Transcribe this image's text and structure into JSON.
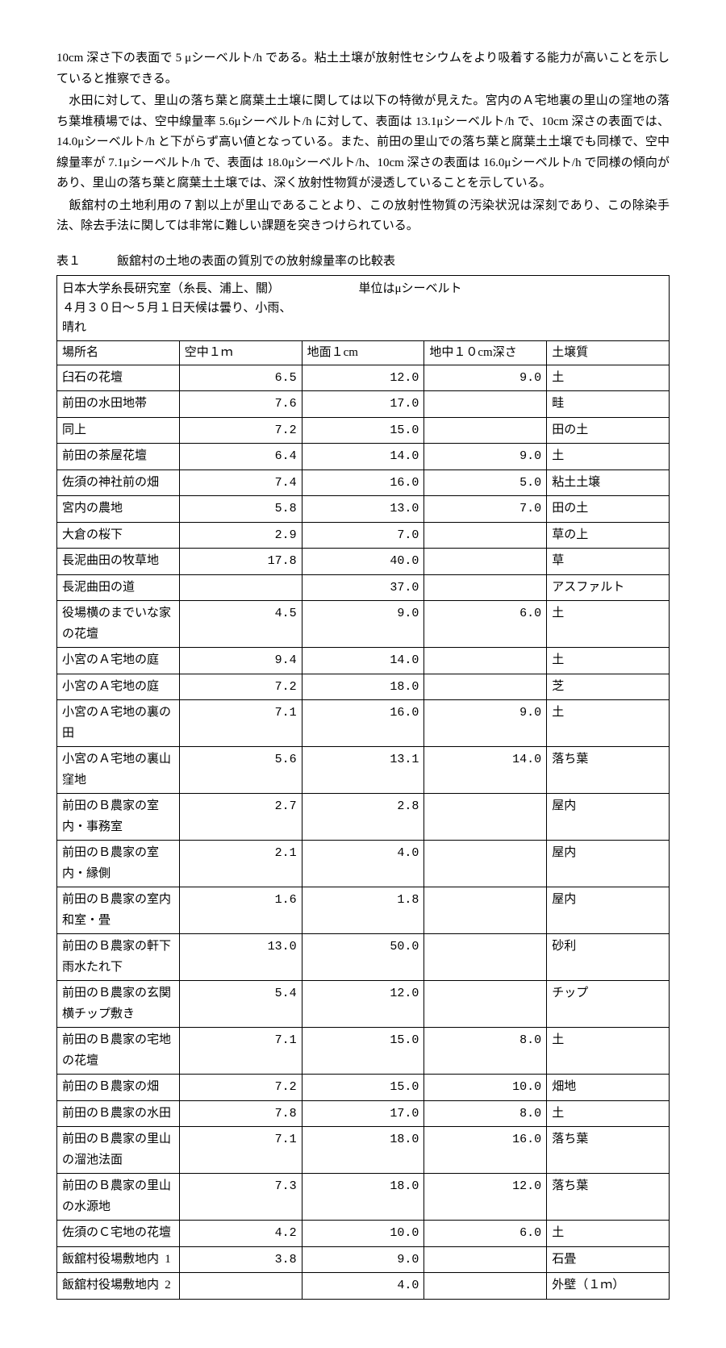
{
  "paragraphs": {
    "p1": "10cm 深さ下の表面で 5 μシーベルト/h である。粘土土壌が放射性セシウムをより吸着する能力が高いことを示していると推察できる。",
    "p2": "　水田に対して、里山の落ち葉と腐葉土土壌に関しては以下の特徴が見えた。宮内のＡ宅地裏の里山の窪地の落ち葉堆積場では、空中線量率 5.6μシーベルト/h に対して、表面は 13.1μシーベルト/h で、10cm 深さの表面では、14.0μシーベルト/h と下がらず高い値となっている。また、前田の里山での落ち葉と腐葉土土壌でも同様で、空中線量率が 7.1μシーベルト/h で、表面は 18.0μシーベルト/h、10cm 深さの表面は 16.0μシーベルト/h で同様の傾向があり、里山の落ち葉と腐葉土土壌では、深く放射性物質が浸透していることを示している。",
    "p3": "　飯舘村の土地利用の７割以上が里山であることより、この放射性物質の汚染状況は深刻であり、この除染手法、除去手法に関しては非常に難しい課題を突きつけられている。"
  },
  "table": {
    "title": "表１　　　飯舘村の土地の表面の質別での放射線量率の比較表",
    "header_lines": [
      "日本大学糸長研究室（糸長、浦上、關）　　　　　　　単位はμシーベルト",
      "４月３０日〜５月１日天候は曇り、小雨、",
      "晴れ"
    ],
    "columns": [
      "場所名",
      "空中１ｍ",
      "地面１cm",
      "地中１０cm深さ",
      "土壌質"
    ],
    "rows": [
      {
        "place": "臼石の花壇",
        "air": "6.5",
        "surf": "12.0",
        "deep": "9.0",
        "soil": "土"
      },
      {
        "place": "前田の水田地帯",
        "air": "7.6",
        "surf": "17.0",
        "deep": "",
        "soil": "畦"
      },
      {
        "place": "同上",
        "air": "7.2",
        "surf": "15.0",
        "deep": "",
        "soil": "田の土"
      },
      {
        "place": "前田の茶屋花壇",
        "air": "6.4",
        "surf": "14.0",
        "deep": "9.0",
        "soil": "土"
      },
      {
        "place": "佐須の神社前の畑",
        "air": "7.4",
        "surf": "16.0",
        "deep": "5.0",
        "soil": "粘土土壌"
      },
      {
        "place": "宮内の農地",
        "air": "5.8",
        "surf": "13.0",
        "deep": "7.0",
        "soil": "田の土"
      },
      {
        "place": "大倉の桜下",
        "air": "2.9",
        "surf": "7.0",
        "deep": "",
        "soil": "草の上"
      },
      {
        "place": "長泥曲田の牧草地",
        "air": "17.8",
        "surf": "40.0",
        "deep": "",
        "soil": "草"
      },
      {
        "place": "長泥曲田の道",
        "air": "",
        "surf": "37.0",
        "deep": "",
        "soil": "アスファルト"
      },
      {
        "place": "役場横のまでいな家の花壇",
        "air": "4.5",
        "surf": "9.0",
        "deep": "6.0",
        "soil": "土"
      },
      {
        "place": "小宮のＡ宅地の庭",
        "air": "9.4",
        "surf": "14.0",
        "deep": "",
        "soil": "土"
      },
      {
        "place": "小宮のＡ宅地の庭",
        "air": "7.2",
        "surf": "18.0",
        "deep": "",
        "soil": "芝"
      },
      {
        "place": "小宮のＡ宅地の裏の田",
        "air": "7.1",
        "surf": "16.0",
        "deep": "9.0",
        "soil": "土"
      },
      {
        "place": "小宮のＡ宅地の裏山窪地",
        "air": "5.6",
        "surf": "13.1",
        "deep": "14.0",
        "soil": "落ち葉"
      },
      {
        "place": "前田のＢ農家の室内・事務室",
        "air": "2.7",
        "surf": "2.8",
        "deep": "",
        "soil": "屋内"
      },
      {
        "place": "前田のＢ農家の室内・縁側",
        "air": "2.1",
        "surf": "4.0",
        "deep": "",
        "soil": "屋内"
      },
      {
        "place": "前田のＢ農家の室内和室・畳",
        "air": "1.6",
        "surf": "1.8",
        "deep": "",
        "soil": "屋内"
      },
      {
        "place": "前田のＢ農家の軒下雨水たれ下",
        "air": "13.0",
        "surf": "50.0",
        "deep": "",
        "soil": "砂利"
      },
      {
        "place": "前田のＢ農家の玄関横チップ敷き",
        "air": "5.4",
        "surf": "12.0",
        "deep": "",
        "soil": "チップ"
      },
      {
        "place": "前田のＢ農家の宅地の花壇",
        "air": "7.1",
        "surf": "15.0",
        "deep": "8.0",
        "soil": "土"
      },
      {
        "place": "前田のＢ農家の畑",
        "air": "7.2",
        "surf": "15.0",
        "deep": "10.0",
        "soil": "畑地"
      },
      {
        "place": "前田のＢ農家の水田",
        "air": "7.8",
        "surf": "17.0",
        "deep": "8.0",
        "soil": "土"
      },
      {
        "place": "前田のＢ農家の里山の溜池法面",
        "air": "7.1",
        "surf": "18.0",
        "deep": "16.0",
        "soil": "落ち葉"
      },
      {
        "place": "前田のＢ農家の里山の水源地",
        "air": "7.3",
        "surf": "18.0",
        "deep": "12.0",
        "soil": "落ち葉"
      },
      {
        "place": "佐須のＣ宅地の花壇",
        "air": "4.2",
        "surf": "10.0",
        "deep": "6.0",
        "soil": "土"
      },
      {
        "place": "飯舘村役場敷地内",
        "no": "1",
        "air": "3.8",
        "surf": "9.0",
        "deep": "",
        "soil": "石畳"
      },
      {
        "place": "飯舘村役場敷地内",
        "no": "2",
        "air": "",
        "surf": "4.0",
        "deep": "",
        "soil": "外壁（１ｍ）"
      }
    ]
  }
}
